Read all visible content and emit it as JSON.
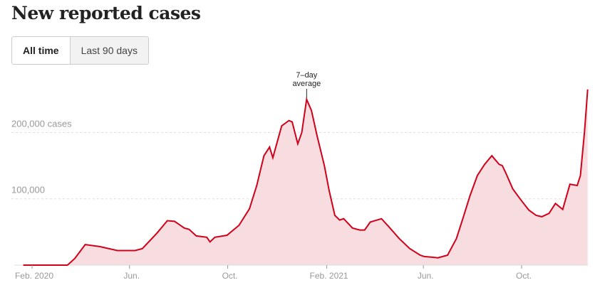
{
  "header": {
    "title": "New reported cases"
  },
  "toggle": {
    "all_time": "All time",
    "last_90": "Last 90 days"
  },
  "chart_data": {
    "type": "area",
    "title": "New reported cases",
    "series": [
      {
        "name": "7-day average",
        "color": "#d0021b",
        "fill": "#f8dde0"
      }
    ],
    "x_unit": "days since 2020-01-01",
    "x": [
      20,
      75,
      84,
      97,
      115,
      137,
      159,
      168,
      186,
      199,
      208,
      220,
      226,
      235,
      248,
      252,
      258,
      273,
      288,
      301,
      310,
      319,
      326,
      330,
      341,
      350,
      354,
      361,
      366,
      372,
      378,
      385,
      394,
      400,
      407,
      413,
      418,
      429,
      438,
      444,
      451,
      465,
      474,
      487,
      500,
      513,
      518,
      527,
      535,
      547,
      558,
      566,
      575,
      584,
      593,
      602,
      611,
      615,
      619,
      628,
      637,
      648,
      657,
      664,
      673,
      681,
      690,
      699,
      708,
      712,
      717,
      721
    ],
    "values": [
      0,
      0,
      10,
      31,
      28,
      22,
      22,
      25,
      48,
      67,
      66,
      56,
      54,
      44,
      42,
      35,
      42,
      45,
      60,
      85,
      120,
      165,
      178,
      162,
      210,
      218,
      216,
      183,
      200,
      250,
      233,
      195,
      150,
      112,
      75,
      68,
      70,
      56,
      53,
      53,
      65,
      70,
      58,
      40,
      25,
      15,
      13,
      12,
      11,
      15,
      40,
      70,
      105,
      135,
      152,
      165,
      152,
      150,
      140,
      115,
      100,
      83,
      75,
      73,
      78,
      93,
      84,
      122,
      120,
      135,
      200,
      265
    ],
    "xlim": [
      20,
      721
    ],
    "ylim": [
      0,
      270000
    ],
    "y_scale": 1000,
    "y_ticks": [
      {
        "value": 100000,
        "label": "100,000"
      },
      {
        "value": 200000,
        "label": "200,000 cases"
      }
    ],
    "x_ticks": [
      {
        "value": 31,
        "label": "Feb. 2020"
      },
      {
        "value": 152,
        "label": "Jun."
      },
      {
        "value": 274,
        "label": "Oct."
      },
      {
        "value": 397,
        "label": "Feb. 2021"
      },
      {
        "value": 517,
        "label": "Jun."
      },
      {
        "value": 639,
        "label": "Oct."
      }
    ],
    "annotation": {
      "x": 372,
      "line1": "7–day",
      "line2": "average"
    },
    "grid": "horizontal dashed"
  }
}
